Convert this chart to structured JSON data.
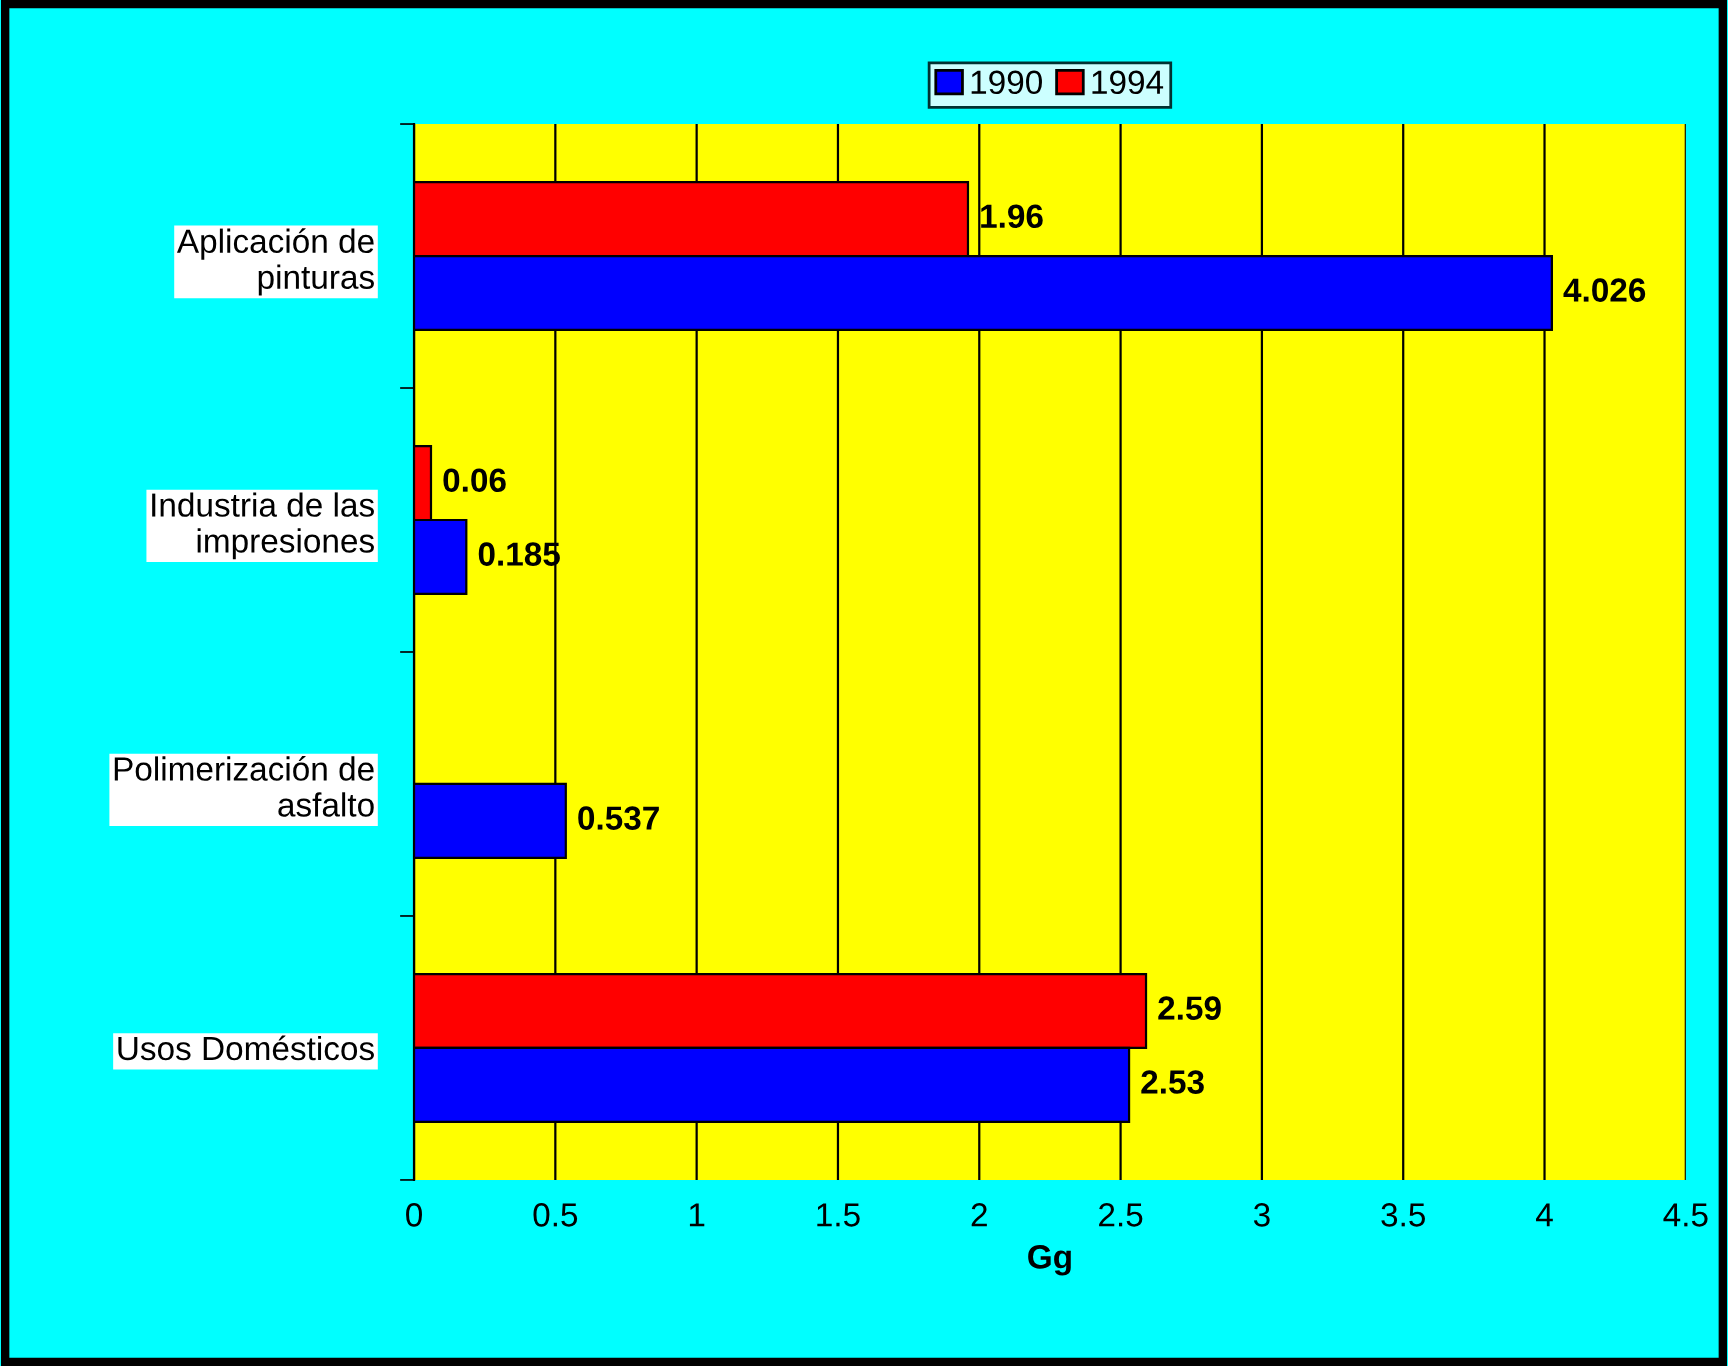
{
  "chart_data": {
    "type": "bar",
    "orientation": "horizontal",
    "xlabel": "Gg",
    "categories": [
      "Aplicación de\npinturas",
      "Industria de las\nimpresiones",
      "Polimerización de\nasfalto",
      "Usos Domésticos"
    ],
    "series": [
      {
        "name": "1994",
        "color": "#ff0000",
        "values": [
          1.96,
          0.06,
          null,
          2.59
        ]
      },
      {
        "name": "1990",
        "color": "#0000ff",
        "values": [
          4.026,
          0.185,
          0.537,
          2.53
        ]
      }
    ],
    "xlim": [
      0,
      4.5
    ],
    "xticks": [
      0,
      0.5,
      1,
      1.5,
      2,
      2.5,
      3,
      3.5,
      4,
      4.5
    ],
    "grid": "x",
    "legend": "top",
    "data_labels": true
  }
}
